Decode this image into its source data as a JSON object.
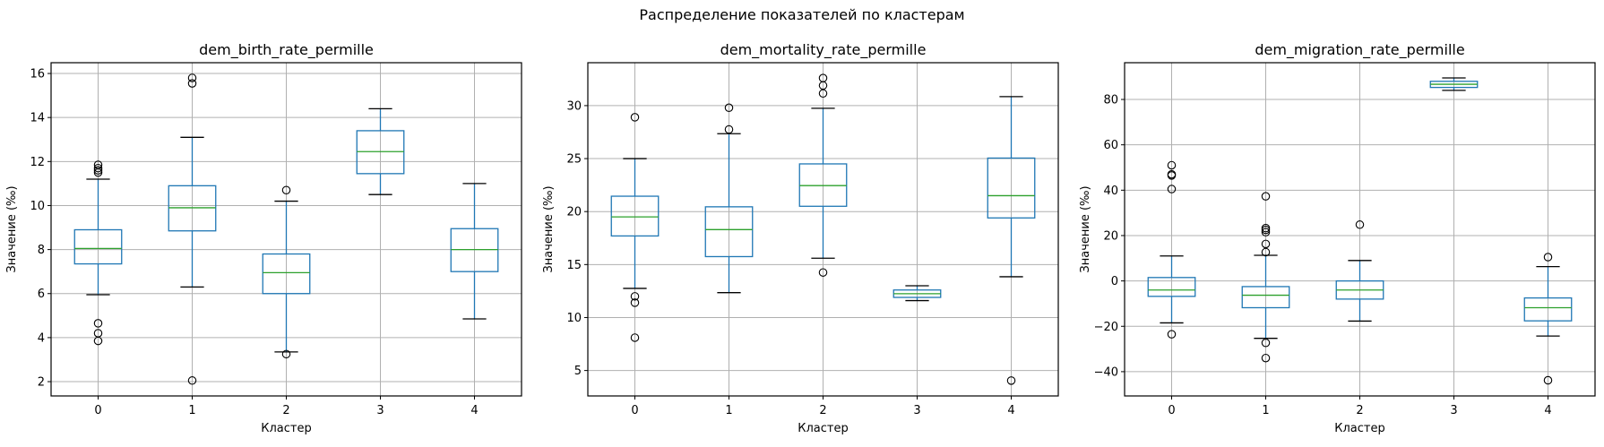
{
  "figure": {
    "suptitle": "Распределение показателей по кластерам"
  },
  "chart_data": [
    {
      "type": "boxplot",
      "title": "dem_birth_rate_permille",
      "xlabel": "Кластер",
      "ylabel": "Значение (‰)",
      "categories": [
        "0",
        "1",
        "2",
        "3",
        "4"
      ],
      "ylim": [
        1.35,
        16.49
      ],
      "yticks": [
        2,
        4,
        6,
        8,
        10,
        12,
        14,
        16
      ],
      "grid": true,
      "boxes": [
        {
          "cluster": "0",
          "whisker_low": 5.95,
          "q1": 7.35,
          "median": 8.05,
          "q3": 8.9,
          "whisker_high": 11.2,
          "outliers": [
            11.5,
            11.6,
            11.7,
            11.85,
            4.65,
            4.2,
            3.85
          ]
        },
        {
          "cluster": "1",
          "whisker_low": 6.3,
          "q1": 8.85,
          "median": 9.9,
          "q3": 10.9,
          "whisker_high": 13.1,
          "outliers": [
            15.8,
            15.55,
            2.05
          ]
        },
        {
          "cluster": "2",
          "whisker_low": 3.35,
          "q1": 6.0,
          "median": 6.95,
          "q3": 7.8,
          "whisker_high": 10.2,
          "outliers": [
            10.7,
            3.25
          ]
        },
        {
          "cluster": "3",
          "whisker_low": 10.5,
          "q1": 11.45,
          "median": 12.45,
          "q3": 13.4,
          "whisker_high": 14.4,
          "outliers": []
        },
        {
          "cluster": "4",
          "whisker_low": 4.85,
          "q1": 7.0,
          "median": 8.0,
          "q3": 8.95,
          "whisker_high": 11.0,
          "outliers": []
        }
      ]
    },
    {
      "type": "boxplot",
      "title": "dem_mortality_rate_permille",
      "xlabel": "Кластер",
      "ylabel": "Значение (‰)",
      "categories": [
        "0",
        "1",
        "2",
        "3",
        "4"
      ],
      "ylim": [
        2.6,
        34.05
      ],
      "yticks": [
        5,
        10,
        15,
        20,
        25,
        30
      ],
      "grid": true,
      "boxes": [
        {
          "cluster": "0",
          "whisker_low": 12.75,
          "q1": 17.7,
          "median": 19.5,
          "q3": 21.45,
          "whisker_high": 25.0,
          "outliers": [
            28.9,
            12.0,
            11.4,
            8.1
          ]
        },
        {
          "cluster": "1",
          "whisker_low": 12.35,
          "q1": 15.75,
          "median": 18.3,
          "q3": 20.45,
          "whisker_high": 27.35,
          "outliers": [
            29.8,
            27.75
          ]
        },
        {
          "cluster": "2",
          "whisker_low": 15.6,
          "q1": 20.5,
          "median": 22.45,
          "q3": 24.5,
          "whisker_high": 29.75,
          "outliers": [
            32.6,
            31.9,
            31.15,
            14.25
          ]
        },
        {
          "cluster": "3",
          "whisker_low": 11.6,
          "q1": 11.9,
          "median": 12.25,
          "q3": 12.6,
          "whisker_high": 13.0,
          "outliers": []
        },
        {
          "cluster": "4",
          "whisker_low": 13.85,
          "q1": 19.4,
          "median": 21.5,
          "q3": 25.05,
          "whisker_high": 30.85,
          "outliers": [
            4.05
          ]
        }
      ]
    },
    {
      "type": "boxplot",
      "title": "dem_migration_rate_permille",
      "xlabel": "Кластер",
      "ylabel": "Значение (‰)",
      "categories": [
        "0",
        "1",
        "2",
        "3",
        "4"
      ],
      "ylim": [
        -50.7,
        96.2
      ],
      "yticks": [
        -40,
        -20,
        0,
        20,
        40,
        60,
        80
      ],
      "grid": true,
      "boxes": [
        {
          "cluster": "0",
          "whisker_low": -18.5,
          "q1": -6.8,
          "median": -4.0,
          "q3": 1.5,
          "whisker_high": 11.0,
          "outliers": [
            51.0,
            47.0,
            46.5,
            40.5,
            -23.5
          ]
        },
        {
          "cluster": "1",
          "whisker_low": -25.3,
          "q1": -11.8,
          "median": -6.3,
          "q3": -2.5,
          "whisker_high": 11.3,
          "outliers": [
            37.3,
            23.3,
            22.5,
            21.5,
            16.3,
            12.7,
            -27.3,
            -34.0
          ]
        },
        {
          "cluster": "2",
          "whisker_low": -17.7,
          "q1": -8.0,
          "median": -4.0,
          "q3": 0.0,
          "whisker_high": 9.0,
          "outliers": [
            24.8
          ]
        },
        {
          "cluster": "3",
          "whisker_low": 84.0,
          "q1": 85.3,
          "median": 86.7,
          "q3": 88.0,
          "whisker_high": 89.5,
          "outliers": []
        },
        {
          "cluster": "4",
          "whisker_low": -24.3,
          "q1": -17.6,
          "median": -11.8,
          "q3": -7.5,
          "whisker_high": 6.3,
          "outliers": [
            10.5,
            -43.8
          ]
        }
      ]
    }
  ],
  "colors": {
    "box": "#1f77b4",
    "median": "#2ca02c",
    "whisker_cap": "#000000",
    "flier": "#000000",
    "grid": "#b0b0b0",
    "axes": "#000000"
  }
}
